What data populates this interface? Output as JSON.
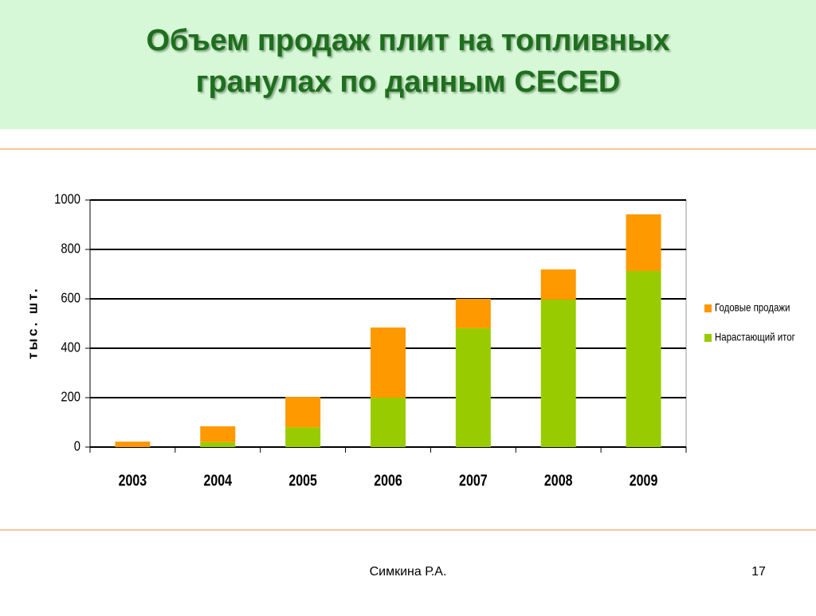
{
  "slide": {
    "author": "Симкина Р.А.",
    "page": "17"
  },
  "chart_data": {
    "type": "stacked-bar",
    "title": "Объем продаж плит на топливных гранулах по данным CECED",
    "y_label": "тыс. шт.",
    "categories": [
      "2003",
      "2004",
      "2005",
      "2006",
      "2007",
      "2008",
      "2009"
    ],
    "series": [
      {
        "name": "Нарастающий итог",
        "color": "#99cc00",
        "values": [
          0,
          20,
          80,
          200,
          481,
          597,
          713
        ]
      },
      {
        "name": "Годовые продажи",
        "color": "#ff9900",
        "values": [
          22,
          64,
          123,
          284,
          119,
          122,
          229
        ]
      }
    ],
    "ylim": [
      0,
      1000
    ],
    "yticks": [
      0,
      200,
      400,
      600,
      800,
      1000
    ],
    "grid": true,
    "legend": "right"
  }
}
